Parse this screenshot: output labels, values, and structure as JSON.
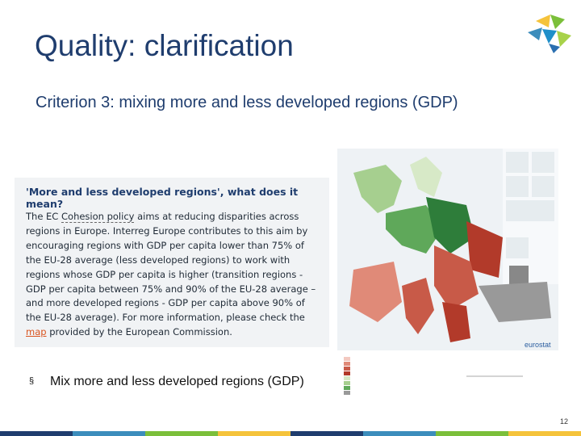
{
  "slide": {
    "title": "Quality: clarification",
    "subtitle": "Criterion 3: mixing more and less developed regions (GDP)",
    "page_number": "12"
  },
  "infobox": {
    "heading": "'More and less developed regions', what does it mean?",
    "line1_pre": "The EC ",
    "line1_link": "Cohesion policy",
    "line1_post": " aims at reducing disparities across regions in Europe. Interreg Europe contributes to this aim by encouraging regions with GDP per capita lower than 75% of the EU-28 average (less developed regions) to work with regions whose GDP per capita is higher (transition regions - GDP per capita between 75% and 90% of the EU-28 average – and more developed regions - GDP per capita above 90% of the EU-28 average). For more information, please check the ",
    "map_link": "map",
    "line_end": " provided by the European Commission."
  },
  "map": {
    "watermark": "eurostat",
    "legend_colors": [
      "#f3c9c0",
      "#e08a78",
      "#c85a48",
      "#b23a2a",
      "#d7e9c7",
      "#a6cf8f",
      "#5fa85a",
      "#2e7d3a",
      "#999999"
    ]
  },
  "bullets": [
    {
      "marker": "§",
      "text": "Mix more and less developed regions (GDP)"
    }
  ],
  "footer_colors": [
    "#1f3d6e",
    "#3c8dbc",
    "#7bbf3a",
    "#f5c33b",
    "#1f3d6e",
    "#3c8dbc",
    "#7bbf3a",
    "#f5c33b"
  ]
}
